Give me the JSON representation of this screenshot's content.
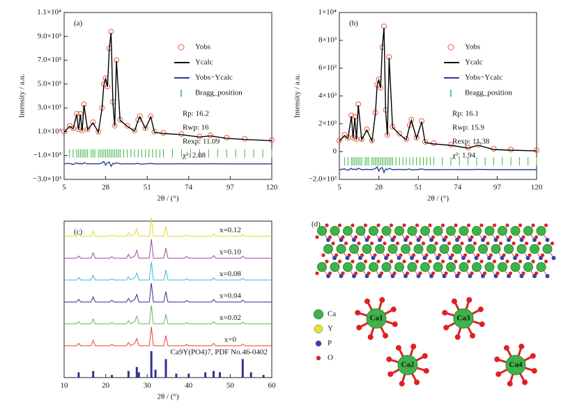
{
  "chart_data": [
    {
      "type": "rietveld",
      "label": "(a)",
      "x_label": "2θ / (°)",
      "y_label": "Intensity / a.u.",
      "xlim": [
        5,
        120
      ],
      "xticks": [
        5,
        28,
        51,
        74,
        97,
        120
      ],
      "ylim": [
        -3000,
        11000
      ],
      "yticks": [
        {
          "value": -3000,
          "label": "−3.0×10³"
        },
        {
          "value": -1000,
          "label": "−1.0×10³"
        },
        {
          "value": 1000,
          "label": "1.0×10³"
        },
        {
          "value": 3000,
          "label": "3.0×10³"
        },
        {
          "value": 5000,
          "label": "5.0×10³"
        },
        {
          "value": 7000,
          "label": "7.0×10³"
        },
        {
          "value": 9000,
          "label": "9.0×10³"
        },
        {
          "value": 11000,
          "label": "1.1×10⁴"
        }
      ],
      "x": [
        5,
        8,
        10,
        12,
        13,
        14,
        15,
        16,
        18,
        21,
        24,
        26,
        27,
        28,
        29,
        30,
        31,
        32,
        33,
        34,
        36,
        40,
        44,
        46,
        47,
        50,
        53,
        55,
        60,
        70,
        80,
        86,
        95,
        105,
        120
      ],
      "series": [
        {
          "name": "Yobs",
          "color": "#e8603c",
          "marker": "open-circle",
          "values": [
            1000,
            1500,
            1300,
            2500,
            1200,
            2500,
            1100,
            3300,
            1200,
            1800,
            1000,
            3000,
            5000,
            5500,
            4800,
            8000,
            9400,
            3500,
            1500,
            7000,
            2000,
            1500,
            1100,
            2000,
            2300,
            1300,
            2300,
            1000,
            900,
            800,
            600,
            700,
            500,
            400,
            300
          ]
        },
        {
          "name": "Ycalc",
          "color": "#000000",
          "marker": "line",
          "values": [
            950,
            1450,
            1250,
            2450,
            1150,
            2450,
            1050,
            3250,
            1150,
            1750,
            950,
            2950,
            4950,
            5450,
            4750,
            7950,
            9300,
            3450,
            1450,
            6950,
            1950,
            1450,
            1050,
            1950,
            2250,
            1250,
            2250,
            950,
            850,
            750,
            550,
            650,
            450,
            350,
            250
          ]
        },
        {
          "name": "Yobs−Ycalc",
          "color": "#2b3a9c",
          "marker": "line",
          "values": [
            -1700,
            -1650,
            -1750,
            -1600,
            -1700,
            -1650,
            -1720,
            -1600,
            -1700,
            -1680,
            -1700,
            -1620,
            -1500,
            -1800,
            -1600,
            -1550,
            -1900,
            -1650,
            -1700,
            -1600,
            -1700,
            -1680,
            -1700,
            -1650,
            -1720,
            -1700,
            -1650,
            -1700,
            -1700,
            -1690,
            -1700,
            -1680,
            -1700,
            -1700,
            -1700
          ]
        }
      ],
      "bragg": {
        "name": "Bragg_position",
        "color": "#3cb043",
        "x": [
          8,
          10,
          12,
          13,
          14,
          15,
          16,
          17,
          18,
          20,
          21,
          22,
          24,
          25,
          26,
          27,
          28,
          29,
          30,
          31,
          32,
          33,
          34,
          35,
          36,
          38,
          40,
          42,
          44,
          46,
          48,
          50,
          52,
          54,
          56,
          58,
          60,
          65,
          70,
          75,
          80,
          85,
          90,
          95,
          100,
          105,
          110,
          115,
          120
        ]
      },
      "annotations": [
        "Rp: 16.2",
        "Rwp: 16",
        "Rexp: 11.09",
        "χ²: 2.08"
      ]
    },
    {
      "type": "rietveld",
      "label": "(b)",
      "x_label": "2θ / (°)",
      "y_label": "Intensity / a.u.",
      "xlim": [
        5,
        120
      ],
      "xticks": [
        5,
        28,
        51,
        74,
        97,
        120
      ],
      "ylim": [
        -2000,
        10000
      ],
      "yticks": [
        {
          "value": -2000,
          "label": "−2.0×10³"
        },
        0,
        {
          "value": 2000,
          "label": "2×10³"
        },
        {
          "value": 4000,
          "label": "4×10³"
        },
        {
          "value": 6000,
          "label": "6×10³"
        },
        {
          "value": 8000,
          "label": "8×10³"
        },
        {
          "value": 10000,
          "label": "1×10⁴"
        }
      ],
      "x": [
        5,
        8,
        10,
        12,
        13,
        14,
        15,
        16,
        18,
        21,
        24,
        26,
        27,
        28,
        29,
        30,
        31,
        32,
        33,
        34,
        36,
        40,
        44,
        46,
        47,
        50,
        53,
        55,
        60,
        70,
        80,
        86,
        95,
        105,
        120
      ],
      "series": [
        {
          "name": "Yobs",
          "color": "#e8603c",
          "marker": "open-circle",
          "values": [
            800,
            1200,
            1000,
            2600,
            1000,
            2500,
            900,
            3400,
            900,
            1600,
            800,
            2800,
            4800,
            5200,
            4600,
            7500,
            9000,
            3000,
            1200,
            6800,
            1800,
            1300,
            900,
            1900,
            2300,
            1000,
            2200,
            700,
            600,
            500,
            300,
            500,
            200,
            150,
            100
          ]
        },
        {
          "name": "Ycalc",
          "color": "#000000",
          "marker": "line",
          "values": [
            750,
            1150,
            950,
            2550,
            950,
            2450,
            850,
            3350,
            850,
            1550,
            750,
            2750,
            4750,
            5150,
            4550,
            7450,
            8900,
            2950,
            1150,
            6750,
            1750,
            1250,
            850,
            1850,
            2250,
            950,
            2150,
            650,
            550,
            450,
            250,
            450,
            150,
            100,
            50
          ]
        },
        {
          "name": "Yobs−Ycalc",
          "color": "#2b3a9c",
          "marker": "line",
          "values": [
            -1300,
            -1250,
            -1350,
            -1200,
            -1300,
            -1250,
            -1320,
            -1200,
            -1300,
            -1280,
            -1300,
            -1220,
            -1100,
            -1400,
            -1200,
            -1150,
            -1500,
            -1250,
            -1300,
            -1200,
            -1300,
            -1280,
            -1300,
            -1250,
            -1320,
            -1300,
            -1250,
            -1300,
            -1300,
            -1290,
            -1300,
            -1280,
            -1300,
            -1300,
            -1300
          ]
        }
      ],
      "bragg": {
        "name": "Bragg_position",
        "color": "#3cb043",
        "x": [
          8,
          10,
          12,
          13,
          14,
          15,
          16,
          17,
          18,
          20,
          21,
          22,
          24,
          25,
          26,
          27,
          28,
          29,
          30,
          31,
          32,
          33,
          34,
          35,
          36,
          38,
          40,
          42,
          44,
          46,
          48,
          50,
          52,
          54,
          56,
          58,
          60,
          65,
          70,
          75,
          80,
          85,
          90,
          95,
          100,
          105,
          110,
          115,
          120
        ]
      },
      "annotations": [
        "Rp: 16.1",
        "Rwp: 15.9",
        "Rexp: 11.38",
        "χ²: 1.94"
      ]
    },
    {
      "type": "line",
      "label": "(c)",
      "x_label": "2θ / (°)",
      "xlim": [
        10,
        60
      ],
      "xticks": [
        10,
        20,
        30,
        40,
        50,
        60
      ],
      "x": [
        10,
        13,
        13.5,
        14,
        16.5,
        17,
        17.5,
        21,
        21.5,
        22,
        25,
        25.5,
        26,
        27,
        27.5,
        28,
        28.5,
        30.5,
        31,
        31.5,
        34,
        34.5,
        35,
        39,
        39.5,
        40,
        45.5,
        46,
        46.5,
        52.5,
        53,
        53.5,
        60
      ],
      "series": [
        {
          "name": "x=0",
          "color": "#e8412c",
          "values": [
            3,
            3,
            15,
            3,
            3,
            30,
            3,
            3,
            10,
            3,
            3,
            20,
            3,
            15,
            40,
            3,
            3,
            3,
            100,
            3,
            3,
            55,
            3,
            3,
            10,
            3,
            3,
            15,
            3,
            3,
            12,
            3,
            3
          ]
        },
        {
          "name": "x=0.02",
          "color": "#5cb85c",
          "values": [
            3,
            3,
            14,
            3,
            3,
            28,
            3,
            3,
            9,
            3,
            3,
            19,
            3,
            14,
            42,
            3,
            3,
            3,
            98,
            3,
            3,
            52,
            3,
            3,
            9,
            3,
            3,
            14,
            3,
            3,
            11,
            3,
            3
          ]
        },
        {
          "name": "x=0.04",
          "color": "#2e3192",
          "values": [
            3,
            3,
            16,
            3,
            3,
            29,
            3,
            3,
            11,
            3,
            3,
            21,
            3,
            16,
            41,
            3,
            3,
            3,
            100,
            3,
            3,
            56,
            3,
            3,
            10,
            3,
            3,
            15,
            3,
            3,
            13,
            3,
            3
          ]
        },
        {
          "name": "x=0.08",
          "color": "#3bb9d0",
          "values": [
            3,
            3,
            15,
            3,
            3,
            27,
            3,
            3,
            10,
            3,
            3,
            20,
            3,
            15,
            39,
            3,
            3,
            3,
            97,
            3,
            3,
            54,
            3,
            3,
            10,
            3,
            3,
            14,
            3,
            3,
            12,
            3,
            3
          ]
        },
        {
          "name": "x=0.10",
          "color": "#9b4a9b",
          "values": [
            3,
            3,
            14,
            3,
            3,
            30,
            3,
            3,
            10,
            3,
            3,
            22,
            3,
            14,
            43,
            3,
            3,
            3,
            100,
            3,
            3,
            55,
            3,
            3,
            11,
            3,
            3,
            16,
            3,
            3,
            12,
            3,
            3
          ]
        },
        {
          "name": "x=0.12",
          "color": "#e0d828",
          "values": [
            3,
            3,
            15,
            3,
            3,
            29,
            3,
            3,
            9,
            3,
            3,
            20,
            3,
            15,
            40,
            3,
            3,
            3,
            99,
            3,
            3,
            53,
            3,
            3,
            10,
            3,
            3,
            15,
            3,
            3,
            12,
            3,
            3
          ]
        }
      ],
      "reference": {
        "name": "Ca9Y(PO4)7, PDF No.46-0402",
        "color": "#2e3192",
        "x": [
          13.5,
          17,
          21.5,
          25.5,
          27.5,
          28,
          31,
          32,
          34.5,
          37,
          40,
          44,
          46,
          47.5,
          53,
          55,
          58
        ],
        "values": [
          20,
          25,
          10,
          25,
          40,
          20,
          100,
          30,
          70,
          15,
          15,
          20,
          25,
          20,
          70,
          20,
          10
        ]
      }
    }
  ],
  "structure": {
    "label": "(d)",
    "legend": [
      "Ca",
      "Y",
      "P",
      "O"
    ],
    "sites": [
      "Ca1",
      "Ca3",
      "Ca2",
      "Ca4"
    ]
  }
}
